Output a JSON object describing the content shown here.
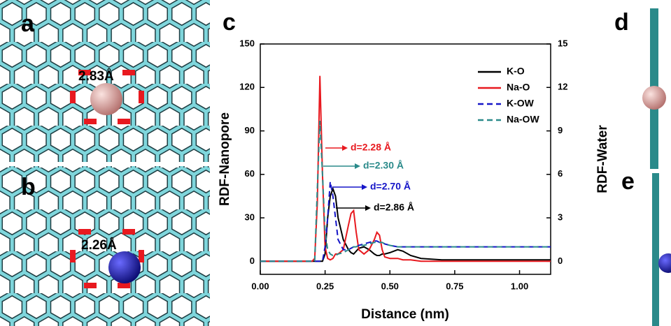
{
  "figure": {
    "labels": [
      "a",
      "b",
      "c",
      "d",
      "e"
    ],
    "distances": [
      "2.83Å",
      "2.26Å"
    ]
  },
  "chart_data": {
    "type": "line",
    "xlabel": "Distance (nm)",
    "ylabel": "RDF-Nanopore",
    "y2label": "RDF-Water",
    "x": [
      0,
      0.1,
      0.2,
      0.21,
      0.22,
      0.23,
      0.24,
      0.25,
      0.26,
      0.27,
      0.28,
      0.29,
      0.3,
      0.32,
      0.34,
      0.35,
      0.36,
      0.37,
      0.38,
      0.4,
      0.42,
      0.44,
      0.45,
      0.46,
      0.47,
      0.48,
      0.5,
      0.53,
      0.55,
      0.58,
      0.62,
      0.7,
      0.8,
      1.0,
      1.12
    ],
    "series": [
      {
        "name": "K-O",
        "color": "#000000",
        "dashed": false,
        "values": [
          0,
          0,
          0,
          0,
          0,
          0,
          0,
          5,
          30,
          45,
          50,
          45,
          30,
          15,
          8,
          6,
          5,
          7,
          9,
          10,
          8,
          5,
          4,
          4,
          5,
          5,
          6,
          8,
          7,
          4,
          2,
          1,
          1,
          1,
          1
        ]
      },
      {
        "name": "Na-O",
        "color": "#e8191f",
        "dashed": false,
        "values": [
          0,
          0,
          0,
          2,
          40,
          128,
          60,
          10,
          2,
          1,
          2,
          5,
          5,
          8,
          25,
          33,
          35,
          20,
          8,
          5,
          8,
          15,
          20,
          18,
          8,
          3,
          2,
          2,
          1,
          1,
          0,
          0,
          0,
          0,
          0
        ]
      },
      {
        "name": "K-OW",
        "color": "#1515c8",
        "dashed": true,
        "axis": "y2",
        "values": [
          0,
          0,
          0,
          0,
          0,
          0,
          0,
          1,
          3,
          5.5,
          4.5,
          3,
          1.5,
          0.8,
          0.8,
          0.9,
          1,
          1,
          1.1,
          1.2,
          1.3,
          1.4,
          1.4,
          1.3,
          1.3,
          1.2,
          1.1,
          1,
          1,
          1,
          1,
          1,
          1,
          1,
          1
        ]
      },
      {
        "name": "Na-OW",
        "color": "#2a8a8a",
        "dashed": true,
        "axis": "y2",
        "values": [
          0,
          0,
          0,
          0,
          5,
          9.7,
          6,
          2,
          0.8,
          0.5,
          0.4,
          0.4,
          0.5,
          0.6,
          0.8,
          0.9,
          1,
          1,
          1.1,
          1.1,
          1.2,
          1.3,
          1.3,
          1.3,
          1.3,
          1.2,
          1.1,
          1,
          1,
          1,
          1,
          1,
          1,
          1,
          1
        ]
      }
    ],
    "annotations": [
      {
        "text": "d=2.28 Å",
        "color": "#e8191f"
      },
      {
        "text": "d=2.30 Å",
        "color": "#2a8a8a"
      },
      {
        "text": "d=2.70 Å",
        "color": "#1515c8"
      },
      {
        "text": "d=2.86 Å",
        "color": "#000000"
      }
    ],
    "xlim": [
      0,
      1.12
    ],
    "xticks": [
      {
        "value": 0,
        "label": "0.00"
      },
      {
        "value": 0.25,
        "label": "0.25"
      },
      {
        "value": 0.5,
        "label": "0.50"
      },
      {
        "value": 0.75,
        "label": "0.75"
      },
      {
        "value": 1,
        "label": "1.00"
      }
    ],
    "ylim": [
      -9,
      150
    ],
    "yticks": [
      0,
      30,
      60,
      90,
      120,
      150
    ],
    "y2lim": [
      -0.9,
      15
    ],
    "y2ticks": [
      0,
      3,
      6,
      9,
      12,
      15
    ],
    "legend": "upper right"
  }
}
